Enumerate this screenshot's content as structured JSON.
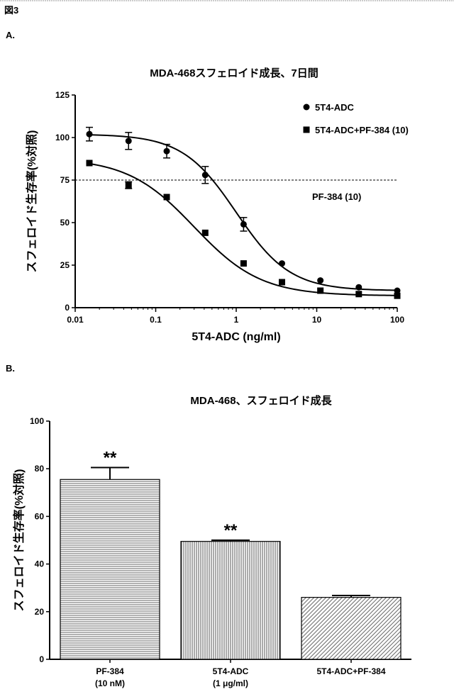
{
  "figure_label": "図3",
  "panel_a_label": "A.",
  "panel_b_label": "B.",
  "chart_data": [
    {
      "type": "scatter",
      "title": "MDA-468スフェロイド成長、7日間",
      "xlabel": "5T4-ADC (ng/ml)",
      "ylabel": "スフェロイド生存率(%対照)",
      "xscale": "log",
      "xlim": [
        0.01,
        100
      ],
      "ylim": [
        0,
        125
      ],
      "xticks": [
        "0.01",
        "0.1",
        "1",
        "10",
        "100"
      ],
      "yticks": [
        "0",
        "25",
        "50",
        "75",
        "100",
        "125"
      ],
      "legend_position": "top-right",
      "series": [
        {
          "name": "5T4-ADC",
          "marker": "circle",
          "x": [
            0.015,
            0.046,
            0.137,
            0.412,
            1.235,
            3.7,
            11.1,
            33.3,
            100
          ],
          "y": [
            102,
            98,
            92,
            78,
            49,
            26,
            16,
            12,
            10
          ],
          "err": [
            4,
            5,
            4,
            5,
            4,
            1,
            1,
            1,
            1
          ],
          "fit": {
            "top": 102,
            "bottom": 10,
            "ec50": 1.0,
            "hill": 1.3
          }
        },
        {
          "name": "5T4-ADC+PF-384 (10)",
          "marker": "square",
          "x": [
            0.015,
            0.046,
            0.137,
            0.412,
            1.235,
            3.7,
            11.1,
            33.3,
            100
          ],
          "y": [
            85,
            72,
            65,
            44,
            26,
            15,
            10,
            8,
            7
          ],
          "err": [
            1,
            2,
            1,
            1,
            1,
            1,
            1,
            1,
            1
          ],
          "fit": {
            "top": 88,
            "bottom": 7,
            "ec50": 0.3,
            "hill": 1.05
          }
        }
      ],
      "reference_line": {
        "y": 75,
        "label": "PF-384 (10)",
        "style": "dashed"
      }
    },
    {
      "type": "bar",
      "title": "MDA-468、スフェロイド成長",
      "ylabel": "スフェロイド生存率(%対照)",
      "ylim": [
        0,
        100
      ],
      "yticks": [
        "0",
        "20",
        "40",
        "60",
        "80",
        "100"
      ],
      "categories": [
        {
          "line1": "PF-384",
          "line2": "(10 nM)"
        },
        {
          "line1": "5T4-ADC",
          "line2": "(1 μg/ml)"
        },
        {
          "line1": "5T4-ADC+PF-384",
          "line2": ""
        }
      ],
      "values": [
        75.5,
        49.5,
        26
      ],
      "err": [
        5,
        0.5,
        0.8
      ],
      "patterns": [
        "horizontal",
        "vertical",
        "diagonal"
      ],
      "annotations": [
        "**",
        "**",
        ""
      ]
    }
  ]
}
